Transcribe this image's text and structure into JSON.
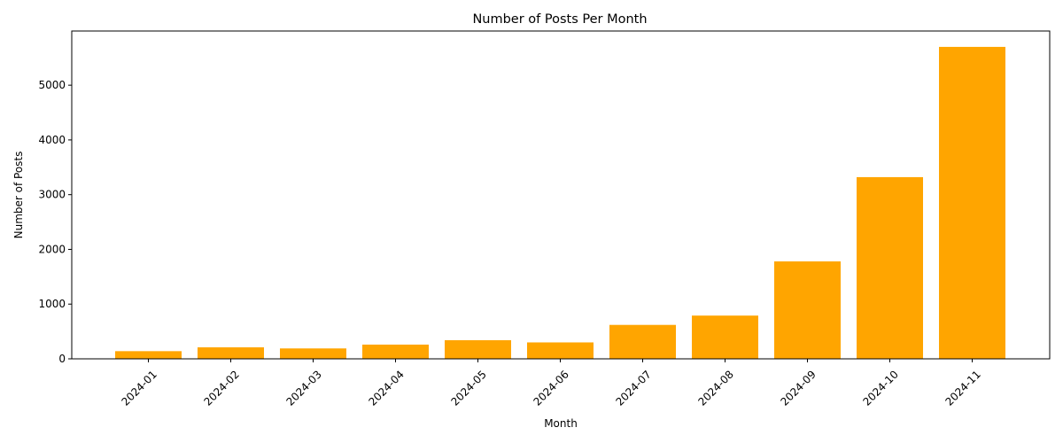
{
  "chart_data": {
    "type": "bar",
    "title": "Number of Posts Per Month",
    "xlabel": "Month",
    "ylabel": "Number of Posts",
    "categories": [
      "2024-01",
      "2024-02",
      "2024-03",
      "2024-04",
      "2024-05",
      "2024-06",
      "2024-07",
      "2024-08",
      "2024-09",
      "2024-10",
      "2024-11"
    ],
    "values": [
      140,
      210,
      190,
      260,
      340,
      300,
      620,
      790,
      1780,
      3320,
      5700
    ],
    "ylim": [
      0,
      5990
    ],
    "yticks": [
      0,
      1000,
      2000,
      3000,
      4000,
      5000
    ],
    "bar_color": "#ffa500",
    "grid": false,
    "xtick_rotation": 45
  }
}
